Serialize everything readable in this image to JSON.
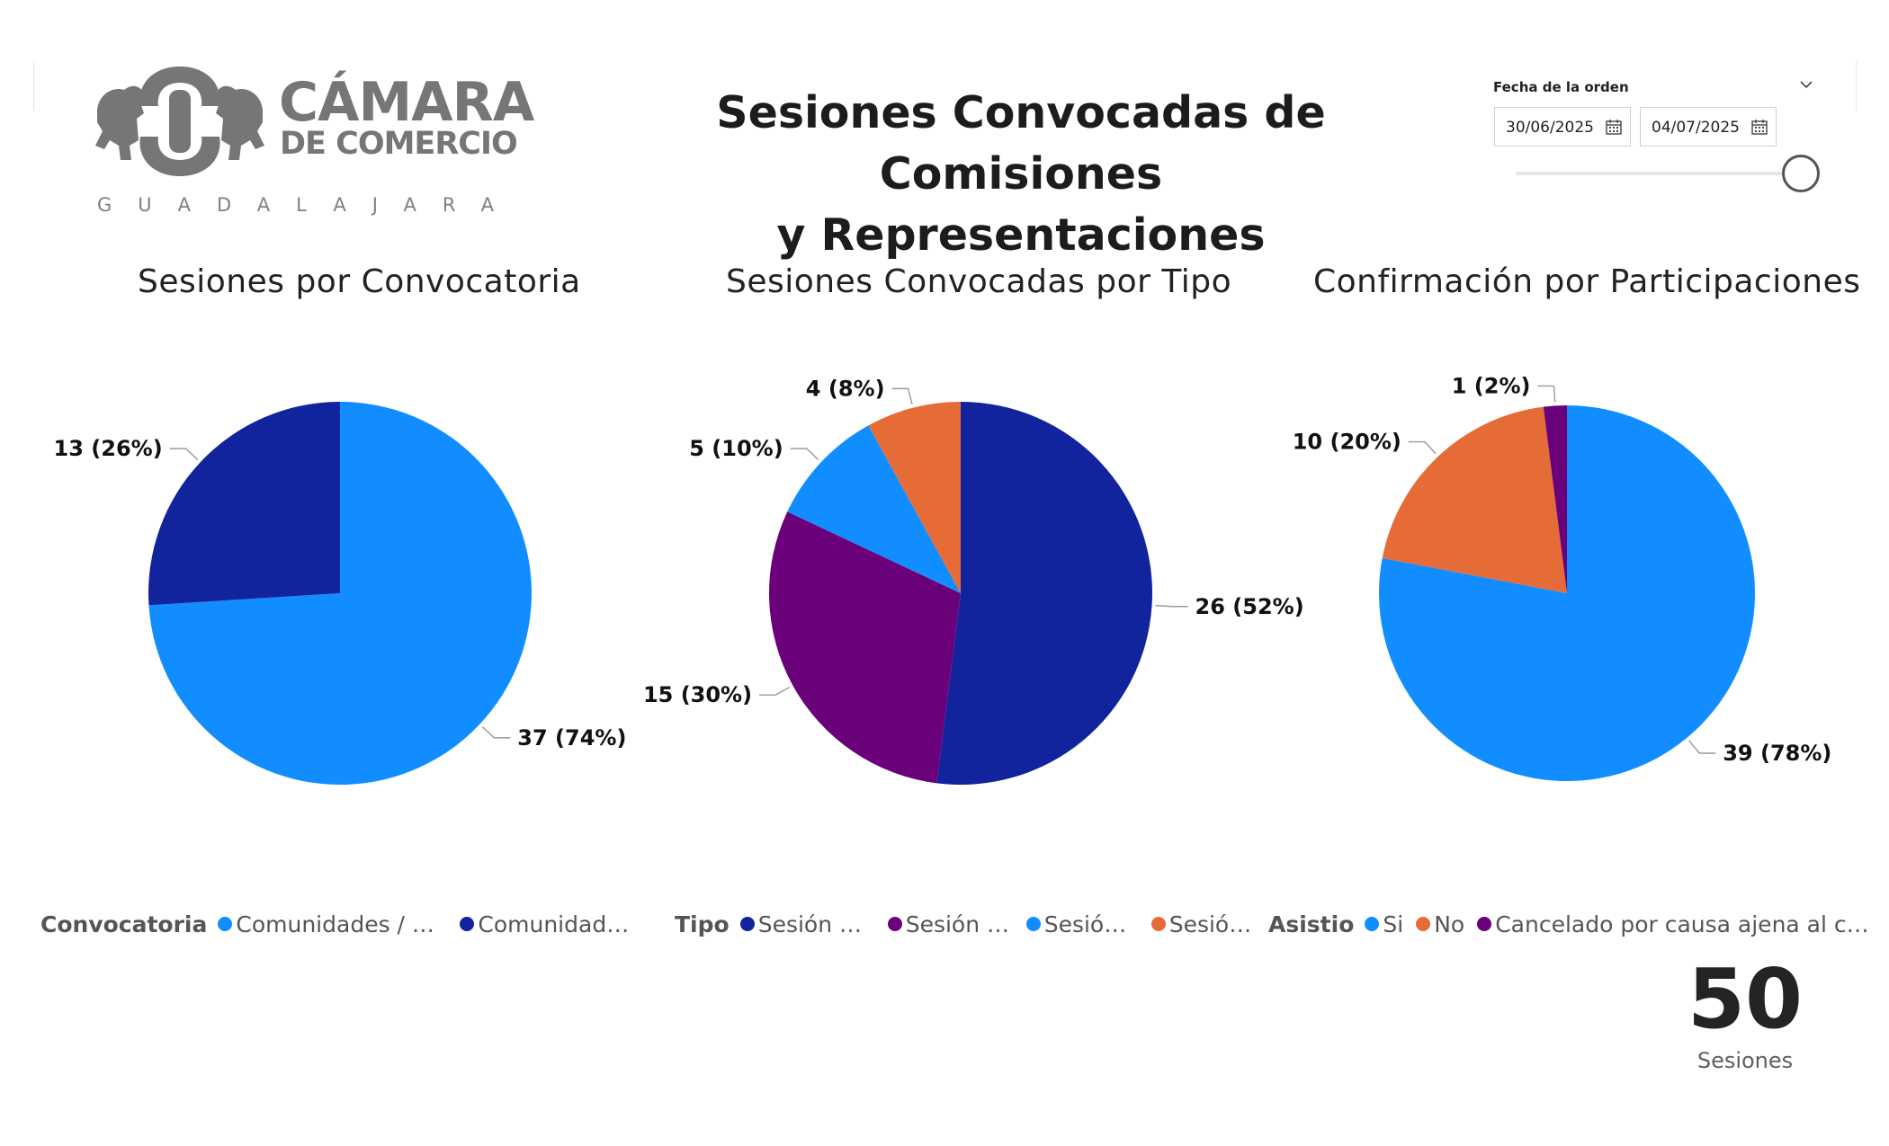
{
  "header": {
    "title_line1": "Sesiones Convocadas de Comisiones",
    "title_line2": "y Representaciones"
  },
  "logo": {
    "word1": "CÁMARA",
    "word2": "DE COMERCIO",
    "city": "GUADALAJARA",
    "color": "#767676"
  },
  "filter": {
    "label": "Fecha de la orden",
    "start": "30/06/2025",
    "end": "04/07/2025",
    "chevron_icon": "chevron-down-icon",
    "calendar_icon": "calendar-icon"
  },
  "kpi": {
    "value": "50",
    "label": "Sesiones"
  },
  "chart_data": [
    {
      "type": "pie",
      "title": "Sesiones por Convocatoria",
      "legend_title": "Convocatoria",
      "legend_placement": "bottom-left",
      "series": [
        {
          "name": "Comunidades / Comi...",
          "value": 37,
          "percent": 74,
          "label": "37 (74%)",
          "color": "#118DFF"
        },
        {
          "name": "Comunidades ...",
          "value": 13,
          "percent": 26,
          "label": "13 (26%)",
          "color": "#12239E"
        }
      ]
    },
    {
      "type": "pie",
      "title": "Sesiones Convocadas por Tipo",
      "legend_title": "Tipo",
      "legend_placement": "bottom-left",
      "series": [
        {
          "name": "Sesión or...",
          "value": 26,
          "percent": 52,
          "label": "26 (52%)",
          "color": "#12239E"
        },
        {
          "name": "Sesión e...",
          "value": 15,
          "percent": 30,
          "label": "15 (30%)",
          "color": "#6B007B"
        },
        {
          "name": "Sesión ...",
          "value": 5,
          "percent": 10,
          "label": "5 (10%)",
          "color": "#118DFF"
        },
        {
          "name": "Sesión ...",
          "value": 4,
          "percent": 8,
          "label": "4 (8%)",
          "color": "#E66C37"
        }
      ]
    },
    {
      "type": "pie",
      "title": "Confirmación por Participaciones",
      "legend_title": "Asistio",
      "legend_placement": "bottom-left",
      "series": [
        {
          "name": "Si",
          "value": 39,
          "percent": 78,
          "label": "39 (78%)",
          "color": "#118DFF"
        },
        {
          "name": "No",
          "value": 10,
          "percent": 20,
          "label": "10 (20%)",
          "color": "#E66C37"
        },
        {
          "name": "Cancelado por causa ajena al comis...",
          "value": 1,
          "percent": 2,
          "label": "1 (2%)",
          "color": "#6B007B"
        }
      ]
    }
  ]
}
